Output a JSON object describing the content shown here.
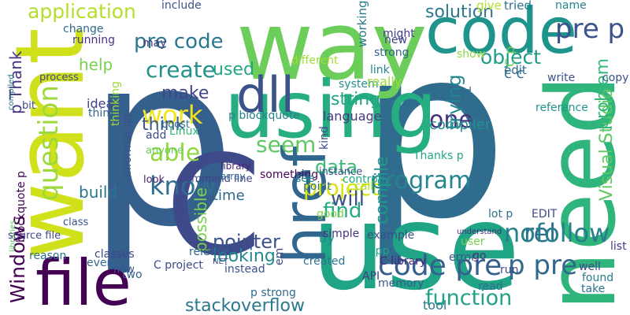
{
  "words": [
    {
      "text": "p",
      "color": "#355f8d",
      "rotated": false
    },
    {
      "text": "p",
      "color": "#2f6c8e",
      "rotated": false
    },
    {
      "text": "C",
      "color": "#3e4a89",
      "rotated": false
    },
    {
      "text": "use",
      "color": "#20a486",
      "rotated": false
    },
    {
      "text": "want",
      "color": "#d0e11c",
      "rotated": true
    },
    {
      "text": "way",
      "color": "#6ccd5a",
      "rotated": false
    },
    {
      "text": "code",
      "color": "#1f948c",
      "rotated": false
    },
    {
      "text": "need",
      "color": "#2fb47c",
      "rotated": true
    },
    {
      "text": "using",
      "color": "#26ad81",
      "rotated": false
    },
    {
      "text": "file",
      "color": "#440154",
      "rotated": false
    },
    {
      "text": "href",
      "color": "#31678e",
      "rotated": true
    },
    {
      "text": "dll",
      "color": "#3b528b",
      "rotated": false
    },
    {
      "text": "pre code",
      "color": "#2a788e",
      "rotated": false
    },
    {
      "text": "code pre",
      "color": "#355f8d",
      "rotated": false
    },
    {
      "text": "work",
      "color": "#f1e51d",
      "rotated": false
    },
    {
      "text": "question",
      "color": "#9dd93b",
      "rotated": true
    },
    {
      "text": "application",
      "color": "#b5de2b",
      "rotated": false
    },
    {
      "text": "pre p",
      "color": "#3b528b",
      "rotated": false
    },
    {
      "text": "object",
      "color": "#1e9b8a",
      "rotated": false
    },
    {
      "text": "solution",
      "color": "#2a788e",
      "rotated": false
    },
    {
      "text": "create",
      "color": "#21918c",
      "rotated": false
    },
    {
      "text": "project",
      "color": "#d8e219",
      "rotated": false
    },
    {
      "text": "program",
      "color": "#25858e",
      "rotated": false
    },
    {
      "text": "one",
      "color": "#46327e",
      "rotated": false
    },
    {
      "text": "Windows",
      "color": "#440154",
      "rotated": true
    },
    {
      "text": "function",
      "color": "#20a486",
      "rotated": false
    },
    {
      "text": "seem",
      "color": "#5ec962",
      "rotated": false
    },
    {
      "text": "will",
      "color": "#3b528b",
      "rotated": false
    },
    {
      "text": "able",
      "color": "#90d743",
      "rotated": false
    },
    {
      "text": "know",
      "color": "#2e6e8e",
      "rotated": false
    },
    {
      "text": "find",
      "color": "#25ab82",
      "rotated": false
    },
    {
      "text": "pointer",
      "color": "#3b528b",
      "rotated": false
    },
    {
      "text": "p pre",
      "color": "#31688e",
      "rotated": false
    },
    {
      "text": "Visual Studio",
      "color": "#5ec962",
      "rotated": true
    },
    {
      "text": "problem",
      "color": "#35b779",
      "rotated": true
    },
    {
      "text": "trying",
      "color": "#24868e",
      "rotated": true
    },
    {
      "text": "string",
      "color": "#21a685",
      "rotated": false
    },
    {
      "text": "rel",
      "color": "#2c728e",
      "rotated": false
    },
    {
      "text": "nofollow",
      "color": "#287d8e",
      "rotated": false
    },
    {
      "text": "data",
      "color": "#38b977",
      "rotated": false
    },
    {
      "text": "looking",
      "color": "#23898e",
      "rotated": false
    },
    {
      "text": "stackoverflow",
      "color": "#2a788e",
      "rotated": false
    },
    {
      "text": "compile",
      "color": "#1f978b",
      "rotated": true
    },
    {
      "text": "make",
      "color": "#404688",
      "rotated": false
    },
    {
      "text": "think",
      "color": "#39568c",
      "rotated": false
    },
    {
      "text": "used",
      "color": "#22a785",
      "rotated": false
    },
    {
      "text": "build",
      "color": "#2b748e",
      "rotated": false
    },
    {
      "text": "help",
      "color": "#7ad151",
      "rotated": false
    },
    {
      "text": "p Thank",
      "color": "#46307e",
      "rotated": true
    },
    {
      "text": "possible",
      "color": "#7ad151",
      "rotated": true
    },
    {
      "text": "time",
      "color": "#31688e",
      "rotated": false
    },
    {
      "text": "p blockquote",
      "color": "#25838e",
      "rotated": false
    },
    {
      "text": "compiler",
      "color": "#21918c",
      "rotated": false
    },
    {
      "text": "language",
      "color": "#443a83",
      "rotated": false
    },
    {
      "text": "method",
      "color": "#2f6c8e",
      "rotated": false
    },
    {
      "text": "system",
      "color": "#21918c",
      "rotated": false
    },
    {
      "text": "process",
      "color": "#3e4a89",
      "rotated": false
    },
    {
      "text": "boost",
      "color": "#2d708e",
      "rotated": false
    },
    {
      "text": "idea",
      "color": "#414487",
      "rotated": false
    },
    {
      "text": "thing",
      "color": "#32648e",
      "rotated": false
    },
    {
      "text": "Linux",
      "color": "#35b779",
      "rotated": false
    },
    {
      "text": "add",
      "color": "#3e4a89",
      "rotated": false
    },
    {
      "text": "anyone",
      "color": "#6ece58",
      "rotated": false
    },
    {
      "text": "library",
      "color": "#482173",
      "rotated": false
    },
    {
      "text": "array",
      "color": "#2c728e",
      "rotated": false
    },
    {
      "text": "point",
      "color": "#2d708e",
      "rotated": false
    },
    {
      "text": "instance",
      "color": "#3b528b",
      "rotated": false
    },
    {
      "text": "something",
      "color": "#46085c",
      "rotated": false
    },
    {
      "text": "control",
      "color": "#22a884",
      "rotated": false
    },
    {
      "text": "call",
      "color": "#addc30",
      "rotated": false
    },
    {
      "text": "Thanks p",
      "color": "#22a785",
      "rotated": false
    },
    {
      "text": "kind",
      "color": "#3e4989",
      "rotated": true
    },
    {
      "text": "really",
      "color": "#9dd93b",
      "rotated": false
    },
    {
      "text": "link",
      "color": "#24878e",
      "rotated": false
    },
    {
      "text": "strong",
      "color": "#33638d",
      "rotated": false
    },
    {
      "text": "different",
      "color": "#a2da37",
      "rotated": false
    },
    {
      "text": "working",
      "color": "#2a788e",
      "rotated": true
    },
    {
      "text": "might",
      "color": "#433e85",
      "rotated": false
    },
    {
      "text": "new",
      "color": "#3f4788",
      "rotated": false
    },
    {
      "text": "give",
      "color": "#b5de2b",
      "rotated": false
    },
    {
      "text": "tried",
      "color": "#2b748e",
      "rotated": false
    },
    {
      "text": "name",
      "color": "#25838e",
      "rotated": false
    },
    {
      "text": "edit",
      "color": "#32658e",
      "rotated": false
    },
    {
      "text": "show",
      "color": "#90d743",
      "rotated": false
    },
    {
      "text": "write",
      "color": "#3b528b",
      "rotated": false
    },
    {
      "text": "reference",
      "color": "#1f948c",
      "rotated": false
    },
    {
      "text": "copy",
      "color": "#39568c",
      "rotated": false
    },
    {
      "text": "C p",
      "color": "#6ccd5a",
      "rotated": true
    },
    {
      "text": "c c",
      "color": "#2c728e",
      "rotated": false
    },
    {
      "text": "lot p",
      "color": "#2e6e8e",
      "rotated": false
    },
    {
      "text": "EDIT",
      "color": "#3e4a89",
      "rotated": false
    },
    {
      "text": "list",
      "color": "#443983",
      "rotated": false
    },
    {
      "text": "well",
      "color": "#3f4889",
      "rotated": false
    },
    {
      "text": "found",
      "color": "#287c8e",
      "rotated": false
    },
    {
      "text": "take",
      "color": "#2d708e",
      "rotated": false
    },
    {
      "text": "read",
      "color": "#2e6d8e",
      "rotated": false
    },
    {
      "text": "run",
      "color": "#3e4989",
      "rotated": false
    },
    {
      "text": "error",
      "color": "#3b528b",
      "rotated": false
    },
    {
      "text": "go",
      "color": "#46337f",
      "rotated": false
    },
    {
      "text": "user",
      "color": "#7ad151",
      "rotated": false
    },
    {
      "text": "tool",
      "color": "#2a788e",
      "rotated": false
    },
    {
      "text": "memory",
      "color": "#38598c",
      "rotated": false
    },
    {
      "text": "API",
      "color": "#433e85",
      "rotated": false
    },
    {
      "text": "app",
      "color": "#21a685",
      "rotated": false
    },
    {
      "text": "try",
      "color": "#27808e",
      "rotated": false
    },
    {
      "text": "em",
      "color": "#3e4989",
      "rotated": true
    },
    {
      "text": "p strong",
      "color": "#31688e",
      "rotated": false
    },
    {
      "text": "created",
      "color": "#2c738e",
      "rotated": false
    },
    {
      "text": "see",
      "color": "#24878e",
      "rotated": false
    },
    {
      "text": "simple",
      "color": "#472f7d",
      "rotated": false
    },
    {
      "text": "good",
      "color": "#7fd34e",
      "rotated": false
    },
    {
      "text": "C library",
      "color": "#482878",
      "rotated": false
    },
    {
      "text": "example",
      "color": "#3d4d8a",
      "rotated": false
    },
    {
      "text": "understand",
      "color": "#472d7b",
      "rotated": false
    },
    {
      "text": "release",
      "color": "#33638d",
      "rotated": false
    },
    {
      "text": "instead",
      "color": "#3b528b",
      "rotated": false
    },
    {
      "text": "NET",
      "color": "#3e4989",
      "rotated": false
    },
    {
      "text": "command line",
      "color": "#404588",
      "rotated": false
    },
    {
      "text": "look",
      "color": "#482475",
      "rotated": false
    },
    {
      "text": "now",
      "color": "#3b528b",
      "rotated": false
    },
    {
      "text": "two",
      "color": "#33638d",
      "rotated": false
    },
    {
      "text": "even",
      "color": "#31688e",
      "rotated": false
    },
    {
      "text": "classes",
      "color": "#3e4989",
      "rotated": false
    },
    {
      "text": "reason",
      "color": "#2d708e",
      "rotated": false
    },
    {
      "text": "blockquote p",
      "color": "#440154",
      "rotated": true
    },
    {
      "text": "libraries",
      "color": "#5ec962",
      "rotated": true
    },
    {
      "text": "source file",
      "color": "#3f4788",
      "rotated": false
    },
    {
      "text": "class",
      "color": "#3b528b",
      "rotated": false
    },
    {
      "text": "may",
      "color": "#443983",
      "rotated": false
    },
    {
      "text": "change",
      "color": "#31688e",
      "rotated": false
    },
    {
      "text": "running",
      "color": "#46327e",
      "rotated": false
    },
    {
      "text": "include",
      "color": "#3b528b",
      "rotated": false
    },
    {
      "text": "bit",
      "color": "#3e4a89",
      "rotated": false
    },
    {
      "text": "compiled",
      "color": "#2c728e",
      "rotated": true
    },
    {
      "text": "thinking",
      "color": "#a2da37",
      "rotated": true
    },
    {
      "text": "information",
      "color": "#3b528b",
      "rotated": true
    },
    {
      "text": "C project",
      "color": "#3e4a89",
      "rotated": false
    }
  ]
}
